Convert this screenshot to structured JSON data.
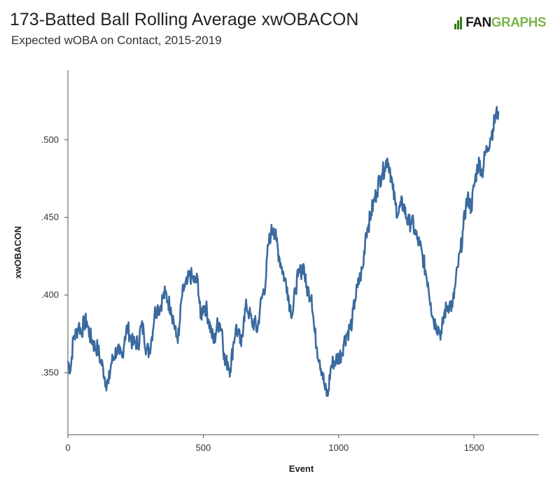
{
  "header": {
    "title": "173-Batted Ball Rolling Average xwOBACON",
    "subtitle": "Expected wOBA on Contact, 2015-2019"
  },
  "logo": {
    "text_fan": "FAN",
    "text_graphs": "GRAPHS"
  },
  "colors": {
    "line": "#3a6a9e",
    "axis": "#555555",
    "logo_dark": "#1a1a1a",
    "logo_green": "#7ab648"
  },
  "chart_data": {
    "type": "line",
    "title": "173-Batted Ball Rolling Average xwOBACON",
    "subtitle": "Expected wOBA on Contact, 2015-2019",
    "xlabel": "Event",
    "ylabel": "xwOBACON",
    "xlim": [
      0,
      1740
    ],
    "ylim": [
      0.31,
      0.545
    ],
    "x_ticks": [
      0,
      500,
      1000,
      1500
    ],
    "x_tick_labels": [
      "0",
      "500",
      "1000",
      "1500"
    ],
    "y_ticks": [
      0.35,
      0.4,
      0.45,
      0.5
    ],
    "y_tick_labels": [
      ".350",
      ".400",
      ".450",
      ".500"
    ],
    "grid": false,
    "legend": "none",
    "series": [
      {
        "x": [
          0,
          10,
          20,
          30,
          40,
          50,
          60,
          70,
          80,
          90,
          100,
          110,
          120,
          130,
          140,
          150,
          160,
          170,
          180,
          190,
          200,
          210,
          220,
          230,
          240,
          250,
          260,
          270,
          280,
          290,
          300,
          310,
          320,
          330,
          340,
          350,
          360,
          370,
          380,
          390,
          400,
          410,
          420,
          430,
          440,
          450,
          460,
          470,
          480,
          490,
          500,
          510,
          520,
          530,
          540,
          550,
          560,
          570,
          580,
          590,
          600,
          610,
          620,
          630,
          640,
          650,
          660,
          670,
          680,
          690,
          700,
          710,
          720,
          730,
          740,
          750,
          760,
          770,
          780,
          790,
          800,
          810,
          820,
          830,
          840,
          850,
          860,
          870,
          880,
          890,
          900,
          910,
          920,
          930,
          940,
          950,
          960,
          970,
          980,
          990,
          1000,
          1010,
          1020,
          1030,
          1040,
          1050,
          1060,
          1070,
          1080,
          1090,
          1100,
          1110,
          1120,
          1130,
          1140,
          1150,
          1160,
          1170,
          1180,
          1190,
          1200,
          1210,
          1220,
          1230,
          1240,
          1250,
          1260,
          1270,
          1280,
          1290,
          1300,
          1310,
          1320,
          1330,
          1340,
          1350,
          1360,
          1370,
          1380,
          1390,
          1400,
          1410,
          1420,
          1430,
          1440,
          1450,
          1460,
          1470,
          1480,
          1490,
          1500,
          1510,
          1520,
          1530,
          1540,
          1550,
          1560,
          1570,
          1580,
          1590
        ],
        "values": [
          0.357,
          0.352,
          0.372,
          0.375,
          0.381,
          0.376,
          0.382,
          0.383,
          0.374,
          0.371,
          0.366,
          0.366,
          0.358,
          0.353,
          0.344,
          0.343,
          0.356,
          0.36,
          0.365,
          0.362,
          0.36,
          0.373,
          0.379,
          0.374,
          0.368,
          0.37,
          0.368,
          0.38,
          0.377,
          0.365,
          0.364,
          0.373,
          0.388,
          0.392,
          0.392,
          0.398,
          0.401,
          0.396,
          0.392,
          0.384,
          0.373,
          0.374,
          0.398,
          0.405,
          0.407,
          0.413,
          0.411,
          0.408,
          0.41,
          0.385,
          0.393,
          0.392,
          0.384,
          0.376,
          0.369,
          0.38,
          0.382,
          0.377,
          0.355,
          0.357,
          0.352,
          0.367,
          0.379,
          0.375,
          0.367,
          0.386,
          0.393,
          0.388,
          0.382,
          0.382,
          0.377,
          0.392,
          0.401,
          0.408,
          0.432,
          0.44,
          0.443,
          0.435,
          0.425,
          0.418,
          0.411,
          0.405,
          0.393,
          0.388,
          0.403,
          0.412,
          0.415,
          0.42,
          0.405,
          0.402,
          0.4,
          0.378,
          0.366,
          0.358,
          0.35,
          0.339,
          0.335,
          0.352,
          0.357,
          0.358,
          0.36,
          0.362,
          0.37,
          0.375,
          0.378,
          0.383,
          0.397,
          0.405,
          0.412,
          0.418,
          0.44,
          0.445,
          0.453,
          0.46,
          0.466,
          0.474,
          0.478,
          0.482,
          0.488,
          0.481,
          0.468,
          0.458,
          0.452,
          0.458,
          0.458,
          0.45,
          0.446,
          0.448,
          0.442,
          0.436,
          0.432,
          0.425,
          0.416,
          0.408,
          0.395,
          0.384,
          0.381,
          0.378,
          0.375,
          0.388,
          0.392,
          0.395,
          0.392,
          0.405,
          0.418,
          0.428,
          0.442,
          0.458,
          0.462,
          0.456,
          0.47,
          0.48,
          0.486,
          0.478,
          0.49,
          0.495,
          0.501,
          0.507,
          0.516,
          0.518
        ]
      }
    ]
  }
}
